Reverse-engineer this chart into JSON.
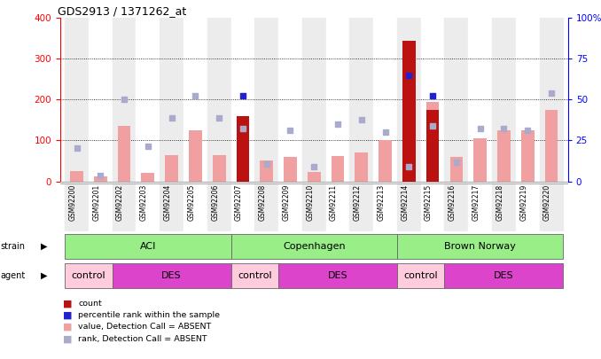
{
  "title": "GDS2913 / 1371262_at",
  "samples": [
    "GSM92200",
    "GSM92201",
    "GSM92202",
    "GSM92203",
    "GSM92204",
    "GSM92205",
    "GSM92206",
    "GSM92207",
    "GSM92208",
    "GSM92209",
    "GSM92210",
    "GSM92211",
    "GSM92212",
    "GSM92213",
    "GSM92214",
    "GSM92215",
    "GSM92216",
    "GSM92217",
    "GSM92218",
    "GSM92219",
    "GSM92220"
  ],
  "count_values": [
    null,
    null,
    null,
    null,
    null,
    null,
    null,
    160,
    null,
    null,
    null,
    null,
    null,
    null,
    345,
    175,
    null,
    null,
    null,
    null,
    null
  ],
  "rank_values": [
    null,
    null,
    null,
    null,
    null,
    null,
    null,
    210,
    null,
    null,
    null,
    null,
    null,
    null,
    260,
    210,
    null,
    null,
    null,
    null,
    null
  ],
  "value_absent": [
    25,
    12,
    135,
    20,
    65,
    125,
    65,
    10,
    50,
    60,
    22,
    62,
    70,
    100,
    10,
    195,
    60,
    105,
    125,
    125,
    175
  ],
  "rank_absent": [
    82,
    15,
    200,
    85,
    155,
    210,
    155,
    130,
    42,
    125,
    35,
    140,
    150,
    120,
    35,
    135,
    47,
    130,
    130,
    125,
    215
  ],
  "ylim": [
    0,
    400
  ],
  "y2lim": [
    0,
    100
  ],
  "yticks": [
    0,
    100,
    200,
    300,
    400
  ],
  "y2ticks": [
    0,
    25,
    50,
    75,
    100
  ],
  "bar_color_dark": "#bb1111",
  "bar_color_light": "#f0a0a0",
  "dot_color_dark": "#2222cc",
  "dot_color_light": "#aaaacc",
  "strain_color": "#99ee88",
  "control_color": "#ffccdd",
  "des_color": "#dd44cc",
  "bg_color": "#ffffff",
  "plot_bg": "#ffffff",
  "col_bg_even": "#ececec",
  "col_bg_odd": "#ffffff"
}
